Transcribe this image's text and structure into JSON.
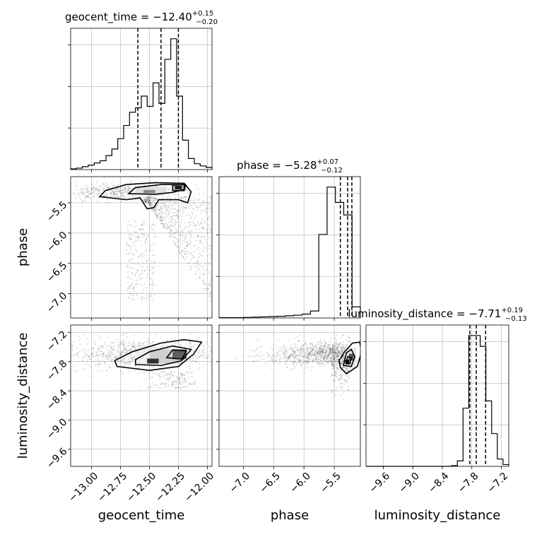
{
  "chart_data": {
    "type": "corner",
    "parameters": [
      {
        "name": "geocent_time",
        "axis_label": "geocent_time",
        "range": [
          -13.18,
          -11.96
        ],
        "ticks": [
          -13.0,
          -12.75,
          -12.5,
          -12.25,
          -12.0
        ],
        "tick_labels": [
          "−13.00",
          "−12.75",
          "−12.50",
          "−12.25",
          "−12.00"
        ],
        "title_main": "geocent_time = −12.40",
        "title_sup": "+0.15",
        "title_sub": "−0.20",
        "quantiles": [
          -12.6,
          -12.4,
          -12.25
        ]
      },
      {
        "name": "phase",
        "axis_label": "phase",
        "range": [
          -7.4,
          -5.07
        ],
        "ticks": [
          -7.0,
          -6.5,
          -6.0,
          -5.5
        ],
        "tick_labels": [
          "−7.0",
          "−6.5",
          "−6.0",
          "−5.5"
        ],
        "title_main": "phase = −5.28",
        "title_sup": "+0.07",
        "title_sub": "−0.12",
        "quantiles": [
          -5.4,
          -5.28,
          -5.21
        ]
      },
      {
        "name": "luminosity_distance",
        "axis_label": "luminosity_distance",
        "range": [
          -9.95,
          -7.05
        ],
        "ticks": [
          -9.6,
          -9.0,
          -8.4,
          -7.8,
          -7.2
        ],
        "tick_labels": [
          "−9.6",
          "−9.0",
          "−8.4",
          "−7.8",
          "−7.2"
        ],
        "title_main": "luminosity_distance = −7.71",
        "title_sup": "+0.19",
        "title_sub": "−0.13",
        "quantiles": [
          -7.84,
          -7.71,
          -7.52
        ]
      }
    ],
    "histograms": [
      {
        "param": "geocent_time",
        "counts": [
          1,
          2,
          4,
          6,
          9,
          12,
          19,
          28,
          42,
          60,
          78,
          84,
          100,
          86,
          118,
          90,
          150,
          178,
          100,
          40,
          15,
          8,
          5,
          3
        ]
      },
      {
        "param": "phase",
        "counts": [
          1,
          1,
          1,
          2,
          3,
          4,
          5,
          6,
          8,
          10,
          14,
          25,
          300,
          470,
          415,
          370,
          40
        ]
      },
      {
        "param": "luminosity_distance",
        "counts": [
          0,
          0,
          0,
          0,
          0,
          0,
          0,
          0,
          0,
          0,
          0,
          0,
          0,
          0,
          0,
          2,
          15,
          160,
          360,
          360,
          330,
          180,
          90,
          20,
          5
        ]
      }
    ],
    "grid": true
  }
}
